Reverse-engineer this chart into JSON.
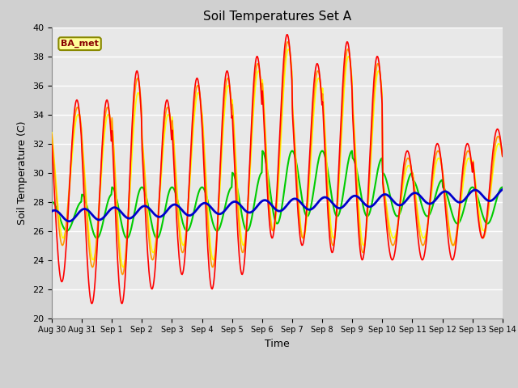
{
  "title": "Soil Temperatures Set A",
  "xlabel": "Time",
  "ylabel": "Soil Temperature (C)",
  "ylim": [
    20,
    40
  ],
  "yticks": [
    20,
    22,
    24,
    26,
    28,
    30,
    32,
    34,
    36,
    38,
    40
  ],
  "fig_bg_color": "#d0d0d0",
  "plot_bg_color": "#e8e8e8",
  "annotation_text": "BA_met",
  "annotation_bg": "#ffff99",
  "annotation_border": "#888800",
  "annotation_text_color": "#880000",
  "line_colors": {
    "-2cm": "#ff0000",
    "-4cm": "#ff9900",
    "-8cm": "#ffff00",
    "-16cm": "#00cc00",
    "-32cm": "#0000cc"
  },
  "x_tick_labels": [
    "Aug 30",
    "Aug 31",
    "Sep 1",
    "Sep 2",
    "Sep 3",
    "Sep 4",
    "Sep 5",
    "Sep 6",
    "Sep 7",
    "Sep 8",
    "Sep 9",
    "Sep 10",
    "Sep 11",
    "Sep 12",
    "Sep 13",
    "Sep 14"
  ],
  "n_days": 15,
  "pts_per_day": 48
}
